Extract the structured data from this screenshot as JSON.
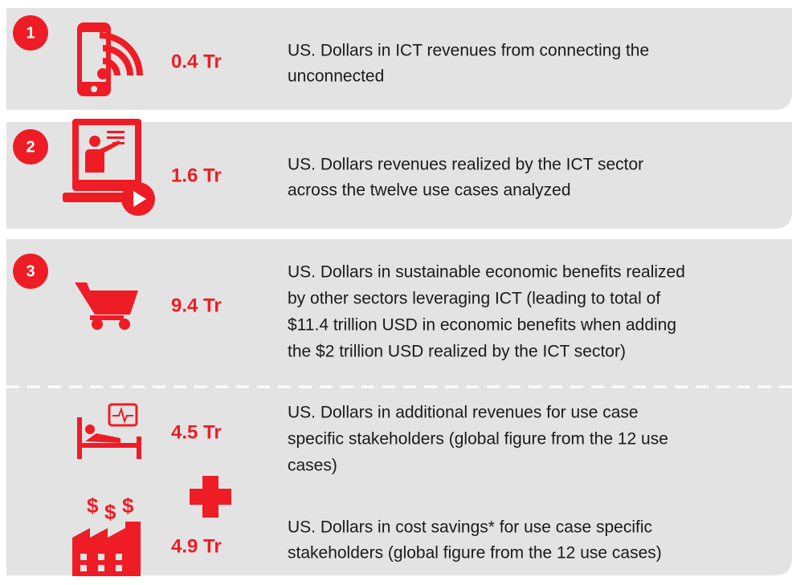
{
  "items": [
    {
      "number": "1",
      "value": "0.4 Tr",
      "description": [
        "US. Dollars in ICT revenues from connecting the",
        "unconnected"
      ]
    },
    {
      "number": "2",
      "value": "1.6 Tr",
      "description": [
        "US. Dollars revenues realized by the ICT sector",
        "across the twelve use cases analyzed"
      ]
    },
    {
      "number": "3",
      "value": "9.4 Tr",
      "description": [
        "US. Dollars in sustainable economic benefits realized",
        "by other sectors leveraging ICT (leading to total of",
        "$11.4 trillion USD in economic benefits when adding",
        "the $2 trillion USD realized by the ICT sector)"
      ],
      "sub_items": [
        {
          "value": "4.5 Tr",
          "description": [
            "US. Dollars in additional revenues for use case",
            "specific stakeholders (global figure from the 12 use",
            "cases)"
          ]
        },
        {
          "value": "4.9 Tr",
          "description": [
            "US. Dollars in cost savings* for use case specific",
            "stakeholders (global figure from the 12 use cases)"
          ]
        }
      ]
    }
  ]
}
